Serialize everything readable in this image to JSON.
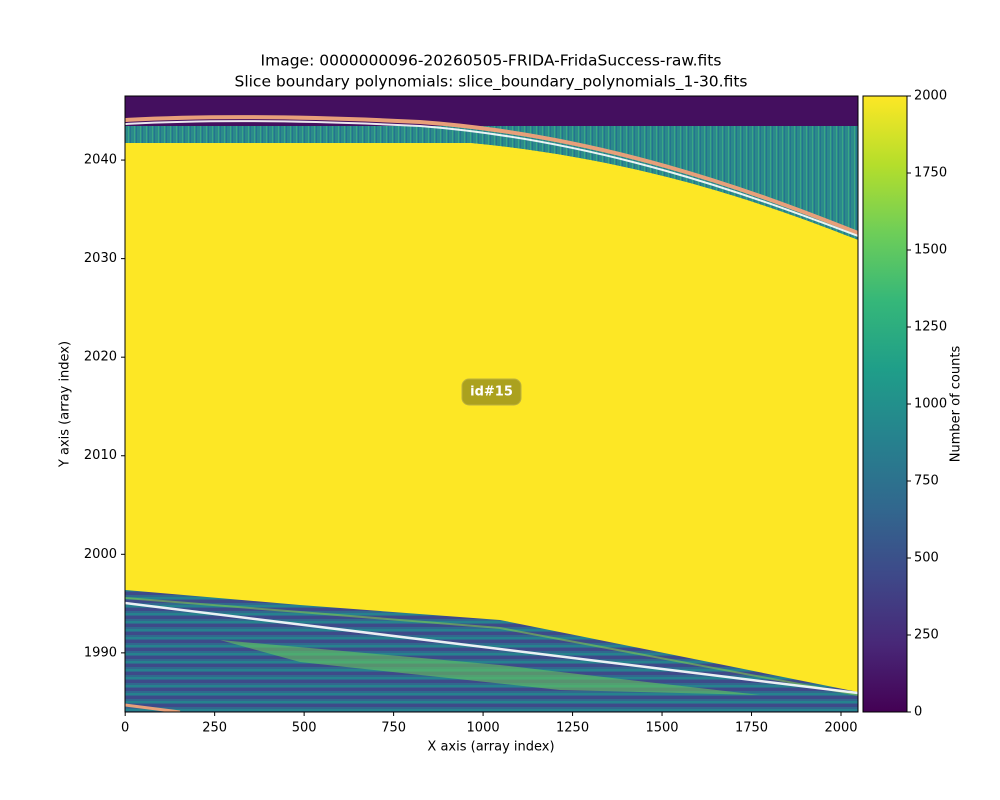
{
  "chart_data": {
    "type": "image",
    "title": "Image: 0000000096-20260505-FRIDA-FridaSuccess-raw.fits",
    "subtitle": "Slice boundary polynomials: slice_boundary_polynomials_1-30.fits",
    "x_label": "X axis (array index)",
    "y_label": "Y axis (array index)",
    "colorbar_label": "Number of counts",
    "annotation": "id#15",
    "colormap": "viridis",
    "xlim": [
      -0.5,
      2047.5
    ],
    "xticks": [
      0,
      250,
      500,
      750,
      1000,
      1250,
      1500,
      1750,
      2000
    ],
    "ylim": [
      1984,
      2046.5
    ],
    "yticks": [
      1990,
      2000,
      2010,
      2020,
      2030,
      2040
    ],
    "clim": [
      0,
      2000
    ],
    "cticks": [
      0,
      250,
      500,
      750,
      1000,
      1250,
      1500,
      1750,
      2000
    ]
  }
}
